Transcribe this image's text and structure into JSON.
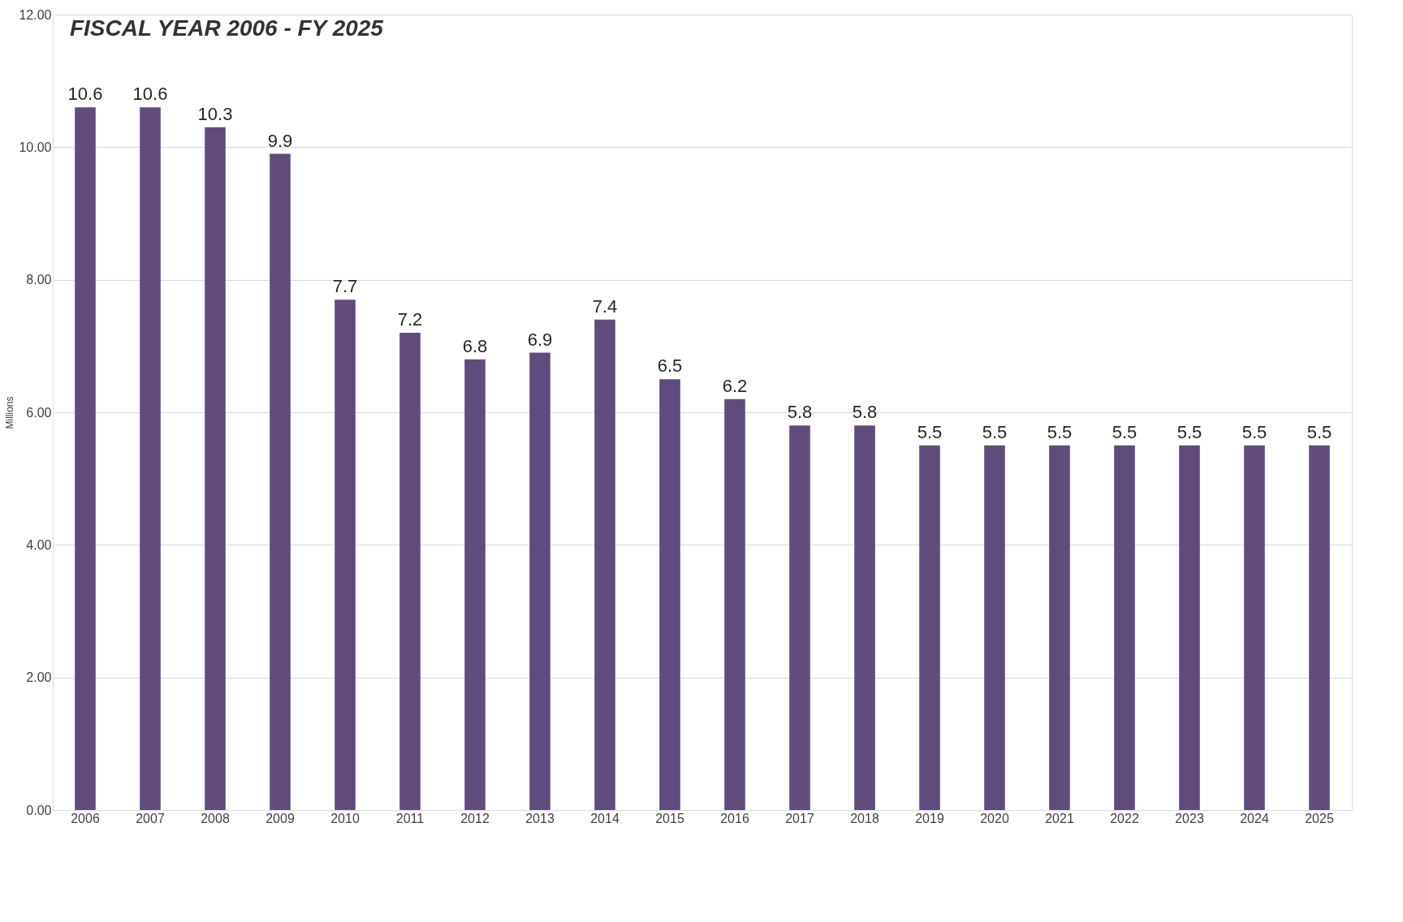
{
  "chart_data": {
    "type": "bar",
    "title": "FISCAL YEAR 2006 - FY 2025",
    "ylabel": "Millions",
    "categories": [
      "2006",
      "2007",
      "2008",
      "2009",
      "2010",
      "2011",
      "2012",
      "2013",
      "2014",
      "2015",
      "2016",
      "2017",
      "2018",
      "2019",
      "2020",
      "2021",
      "2022",
      "2023",
      "2024",
      "2025"
    ],
    "values": [
      10.6,
      10.6,
      10.3,
      9.9,
      7.7,
      7.2,
      6.8,
      6.9,
      7.4,
      6.5,
      6.2,
      5.8,
      5.8,
      5.5,
      5.5,
      5.5,
      5.5,
      5.5,
      5.5,
      5.5
    ],
    "color": "#604c7c",
    "data_labels": true,
    "grid": "y",
    "ylim": [
      0,
      12
    ],
    "yticks": [
      {
        "value": 0,
        "label": "0.00"
      },
      {
        "value": 2,
        "label": "2.00"
      },
      {
        "value": 4,
        "label": "4.00"
      },
      {
        "value": 6,
        "label": "6.00"
      },
      {
        "value": 8,
        "label": "8.00"
      },
      {
        "value": 10,
        "label": "10.00"
      },
      {
        "value": 12,
        "label": "12.00"
      }
    ]
  }
}
